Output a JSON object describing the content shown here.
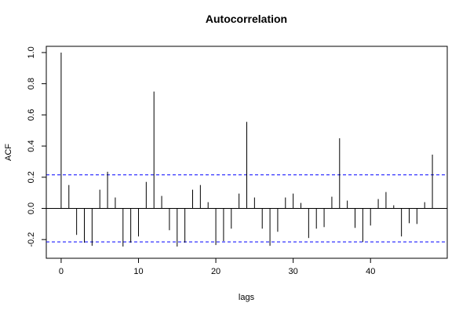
{
  "chart_data": {
    "type": "bar",
    "title": "Autocorrelation",
    "xlabel": "lags",
    "ylabel": "ACF",
    "xlim": [
      -1.92,
      49.92
    ],
    "ylim": [
      -0.32,
      1.04
    ],
    "xticks": [
      0,
      10,
      20,
      30,
      40
    ],
    "yticks": [
      -0.2,
      0.0,
      0.2,
      0.4,
      0.6,
      0.8,
      1.0
    ],
    "ytick_labels": [
      "-0.2",
      "0.0",
      "0.2",
      "0.4",
      "0.6",
      "0.8",
      "1.0"
    ],
    "lags": [
      0,
      1,
      2,
      3,
      4,
      5,
      6,
      7,
      8,
      9,
      10,
      11,
      12,
      13,
      14,
      15,
      16,
      17,
      18,
      19,
      20,
      21,
      22,
      23,
      24,
      25,
      26,
      27,
      28,
      29,
      30,
      31,
      32,
      33,
      34,
      35,
      36,
      37,
      38,
      39,
      40,
      41,
      42,
      43,
      44,
      45,
      46,
      47,
      48
    ],
    "values": [
      1.0,
      0.15,
      -0.17,
      -0.22,
      -0.24,
      0.12,
      0.235,
      0.07,
      -0.245,
      -0.22,
      -0.18,
      0.17,
      0.75,
      0.08,
      -0.14,
      -0.245,
      -0.22,
      0.12,
      0.15,
      0.04,
      -0.235,
      -0.21,
      -0.13,
      0.095,
      0.555,
      0.07,
      -0.13,
      -0.24,
      -0.15,
      0.07,
      0.095,
      0.035,
      -0.19,
      -0.13,
      -0.12,
      0.075,
      0.45,
      0.05,
      -0.125,
      -0.215,
      -0.11,
      0.06,
      0.105,
      0.02,
      -0.18,
      -0.095,
      -0.1,
      0.04,
      0.345
    ],
    "confidence_bound": 0.215,
    "zero_line": 0,
    "colors": {
      "bars": "#000000",
      "confidence_lines": "#0000ff",
      "zero_line": "#000000"
    }
  }
}
